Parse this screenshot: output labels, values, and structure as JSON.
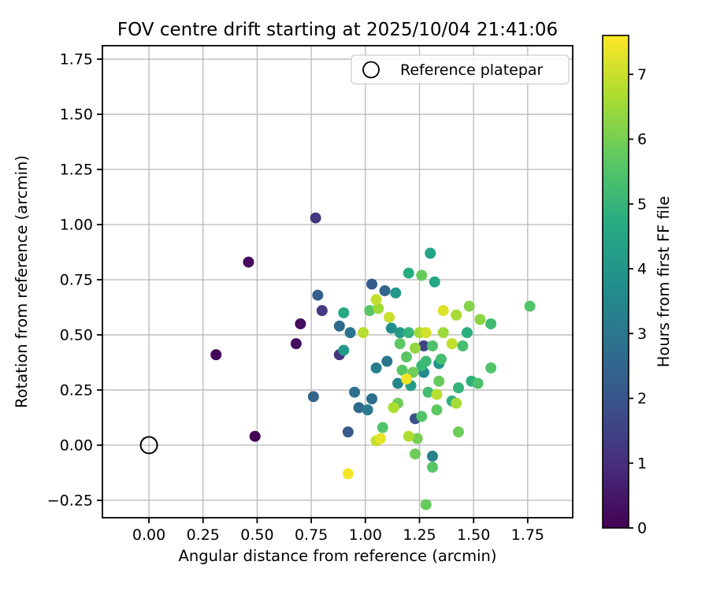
{
  "chart_data": {
    "type": "scatter",
    "title": "FOV centre drift starting at 2025/10/04 21:41:06",
    "xlabel": "Angular distance from reference (arcmin)",
    "ylabel": "Rotation from reference (arcmin)",
    "xlim": [
      -0.215,
      1.958
    ],
    "ylim": [
      -0.329,
      1.811
    ],
    "xticks": [
      0.0,
      0.25,
      0.5,
      0.75,
      1.0,
      1.25,
      1.5,
      1.75
    ],
    "xtick_labels": [
      "0.00",
      "0.25",
      "0.50",
      "0.75",
      "1.00",
      "1.25",
      "1.50",
      "1.75"
    ],
    "yticks": [
      -0.25,
      0.0,
      0.25,
      0.5,
      0.75,
      1.0,
      1.25,
      1.5,
      1.75
    ],
    "ytick_labels": [
      "−0.25",
      "0.00",
      "0.25",
      "0.50",
      "0.75",
      "1.00",
      "1.25",
      "1.50",
      "1.75"
    ],
    "grid": true,
    "grid_color": "#b9b9b9",
    "background": "#ffffff",
    "legend": {
      "label": "Reference platepar",
      "marker": "open-circle",
      "position": "upper right"
    },
    "reference_point": {
      "x": 0.0,
      "y": 0.0
    },
    "colorbar": {
      "label": "Hours from first FF file",
      "vmin": 0,
      "vmax": 7.6,
      "ticks": [
        0,
        1,
        2,
        3,
        4,
        5,
        6,
        7
      ],
      "tick_labels": [
        "0",
        "1",
        "2",
        "3",
        "4",
        "5",
        "6",
        "7"
      ],
      "colormap": "viridis"
    },
    "viridis_stops": [
      "#440154",
      "#472d7b",
      "#3b528b",
      "#2c728e",
      "#21918c",
      "#27ad81",
      "#5ec962",
      "#aadc32",
      "#fde725"
    ],
    "point_format": [
      "angular_distance_arcmin",
      "rotation_arcmin",
      "hours_from_first_ff"
    ],
    "points": [
      [
        0.49,
        0.04,
        0.05
      ],
      [
        0.31,
        0.41,
        0.1
      ],
      [
        0.46,
        0.83,
        0.2
      ],
      [
        0.7,
        0.55,
        0.25
      ],
      [
        0.68,
        0.46,
        0.3
      ],
      [
        0.88,
        0.41,
        1.1
      ],
      [
        0.77,
        1.03,
        1.2
      ],
      [
        0.8,
        0.61,
        1.3
      ],
      [
        1.27,
        0.45,
        1.6
      ],
      [
        1.23,
        0.12,
        1.9
      ],
      [
        0.92,
        0.06,
        2.1
      ],
      [
        1.03,
        0.73,
        2.2
      ],
      [
        0.78,
        0.68,
        2.3
      ],
      [
        0.76,
        0.22,
        2.4
      ],
      [
        1.09,
        0.7,
        2.5
      ],
      [
        0.88,
        0.54,
        2.6
      ],
      [
        0.97,
        0.17,
        2.6
      ],
      [
        1.03,
        0.21,
        2.7
      ],
      [
        0.95,
        0.24,
        2.8
      ],
      [
        0.93,
        0.51,
        2.9
      ],
      [
        1.1,
        0.38,
        3.0
      ],
      [
        1.01,
        0.16,
        3.1
      ],
      [
        1.05,
        0.35,
        3.2
      ],
      [
        1.31,
        -0.05,
        3.3
      ],
      [
        1.15,
        0.28,
        3.4
      ],
      [
        1.27,
        0.33,
        3.6
      ],
      [
        1.12,
        0.53,
        3.7
      ],
      [
        1.34,
        0.37,
        3.9
      ],
      [
        1.14,
        0.69,
        4.0
      ],
      [
        0.9,
        0.43,
        4.1
      ],
      [
        1.16,
        0.51,
        4.15
      ],
      [
        1.21,
        0.27,
        4.2
      ],
      [
        1.3,
        0.87,
        4.4
      ],
      [
        1.32,
        0.74,
        4.5
      ],
      [
        0.9,
        0.6,
        4.6
      ],
      [
        1.2,
        0.78,
        4.7
      ],
      [
        1.47,
        0.51,
        4.8
      ],
      [
        1.49,
        0.29,
        4.9
      ],
      [
        1.4,
        0.2,
        4.9
      ],
      [
        1.43,
        0.26,
        5.0
      ],
      [
        1.2,
        0.51,
        5.0
      ],
      [
        1.26,
        0.36,
        5.05
      ],
      [
        1.28,
        0.38,
        5.15
      ],
      [
        1.58,
        0.55,
        5.2
      ],
      [
        1.29,
        0.24,
        5.25
      ],
      [
        1.35,
        0.39,
        5.3
      ],
      [
        1.45,
        0.45,
        5.3
      ],
      [
        1.52,
        0.28,
        5.4
      ],
      [
        1.31,
        0.45,
        5.4
      ],
      [
        1.58,
        0.35,
        5.5
      ],
      [
        1.76,
        0.63,
        5.5
      ],
      [
        1.08,
        0.08,
        5.5
      ],
      [
        1.26,
        0.13,
        5.5
      ],
      [
        1.02,
        0.61,
        5.6
      ],
      [
        1.19,
        0.4,
        5.6
      ],
      [
        1.17,
        0.34,
        5.6
      ],
      [
        1.31,
        -0.1,
        5.6
      ],
      [
        1.16,
        0.46,
        5.7
      ],
      [
        1.33,
        0.16,
        5.7
      ],
      [
        1.34,
        0.29,
        5.8
      ],
      [
        1.26,
        0.77,
        5.8
      ],
      [
        1.28,
        -0.27,
        5.8
      ],
      [
        1.15,
        0.19,
        5.9
      ],
      [
        1.22,
        0.33,
        5.9
      ],
      [
        1.23,
        -0.04,
        5.9
      ],
      [
        1.43,
        0.06,
        5.9
      ],
      [
        1.24,
        0.03,
        6.0
      ],
      [
        1.48,
        0.63,
        6.2
      ],
      [
        1.53,
        0.57,
        6.3
      ],
      [
        1.23,
        0.44,
        6.4
      ],
      [
        1.36,
        0.51,
        6.5
      ],
      [
        1.06,
        0.62,
        6.5
      ],
      [
        1.42,
        0.59,
        6.6
      ],
      [
        1.25,
        0.51,
        6.6
      ],
      [
        1.42,
        0.19,
        6.6
      ],
      [
        1.13,
        0.17,
        6.7
      ],
      [
        1.2,
        0.04,
        6.7
      ],
      [
        0.99,
        0.51,
        6.8
      ],
      [
        1.33,
        0.23,
        6.8
      ],
      [
        1.05,
        0.66,
        6.9
      ],
      [
        1.4,
        0.46,
        6.9
      ],
      [
        1.05,
        0.02,
        6.9
      ],
      [
        1.11,
        0.58,
        7.0
      ],
      [
        1.28,
        0.51,
        7.1
      ],
      [
        1.36,
        0.61,
        7.2
      ],
      [
        1.07,
        0.03,
        7.35
      ],
      [
        1.19,
        0.3,
        7.45
      ],
      [
        0.92,
        -0.13,
        7.5
      ]
    ]
  }
}
